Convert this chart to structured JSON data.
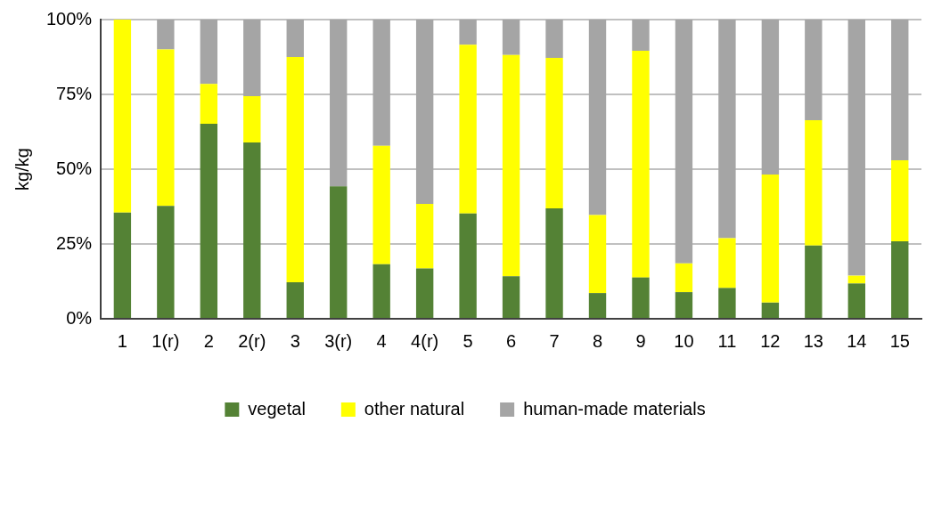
{
  "chart_data": {
    "type": "bar",
    "stacked": true,
    "ylabel": "kg/kg",
    "categories": [
      "1",
      "1(r)",
      "2",
      "2(r)",
      "3",
      "3(r)",
      "4",
      "4(r)",
      "5",
      "6",
      "7",
      "8",
      "9",
      "10",
      "11",
      "12",
      "13",
      "14",
      "15"
    ],
    "series": [
      {
        "name": "vegetal",
        "color": "#548235",
        "values": [
          35.5,
          37.7,
          65.2,
          58.9,
          12.2,
          44.3,
          18.2,
          16.8,
          35.2,
          14.2,
          36.9,
          8.6,
          13.8,
          8.9,
          10.3,
          5.4,
          24.5,
          11.8,
          25.9
        ]
      },
      {
        "name": "other natural",
        "color": "#ffff00",
        "values": [
          64.5,
          52.3,
          13.3,
          15.5,
          75.3,
          0,
          39.6,
          21.6,
          56.4,
          74,
          50.3,
          26.1,
          75.8,
          9.6,
          16.6,
          42.8,
          41.9,
          2.6,
          27.1
        ]
      },
      {
        "name": "human-made materials",
        "color": "#a5a5a5",
        "values": [
          0,
          10,
          21.5,
          25.6,
          12.5,
          55.7,
          42.2,
          61.6,
          8.4,
          11.8,
          12.8,
          65.3,
          10.4,
          81.5,
          73.1,
          51.8,
          33.6,
          85.6,
          47
        ]
      }
    ],
    "ylim": [
      0,
      100
    ],
    "yticks": [
      {
        "value": 0,
        "label": "0%"
      },
      {
        "value": 25,
        "label": "25%"
      },
      {
        "value": 50,
        "label": "50%"
      },
      {
        "value": 75,
        "label": "75%"
      },
      {
        "value": 100,
        "label": "100%"
      }
    ],
    "grid": "y",
    "legend": "bottom"
  }
}
